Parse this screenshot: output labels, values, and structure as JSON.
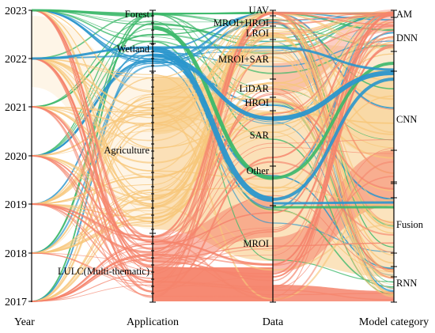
{
  "chart_data": {
    "type": "parallel-sets",
    "axes": [
      {
        "name": "Year",
        "categories": [
          "2023",
          "2022",
          "2021",
          "2020",
          "2019",
          "2018",
          "2017"
        ]
      },
      {
        "name": "Application",
        "categories": [
          "Forest",
          "Wetland",
          "Agriculture",
          "LULC(Multi-thematic)"
        ]
      },
      {
        "name": "Data",
        "categories": [
          "UAV",
          "MROI+HROI",
          "LROI",
          "MROI+SAR",
          "LiDAR",
          "HROI",
          "SAR",
          "Other",
          "MROI"
        ]
      },
      {
        "name": "Model category",
        "categories": [
          "AM",
          "DNN",
          "CNN",
          "Fusion",
          "RNN"
        ]
      }
    ],
    "colors": {
      "Forest": "#3cb86a",
      "Wetland": "#2a96cc",
      "Agriculture": "#f7c77b",
      "LULC(Multi-thematic)": "#f5846c"
    },
    "highlighted_paths": [
      {
        "application": "Forest",
        "data": "SAR",
        "model": "CNN",
        "color": "#3cb86a"
      },
      {
        "application": "Wetland",
        "data": "SAR",
        "model": "CNN",
        "color": "#2a96cc"
      },
      {
        "application": "Wetland",
        "data": "Other",
        "model": "Fusion",
        "color": "#2a96cc"
      }
    ]
  }
}
